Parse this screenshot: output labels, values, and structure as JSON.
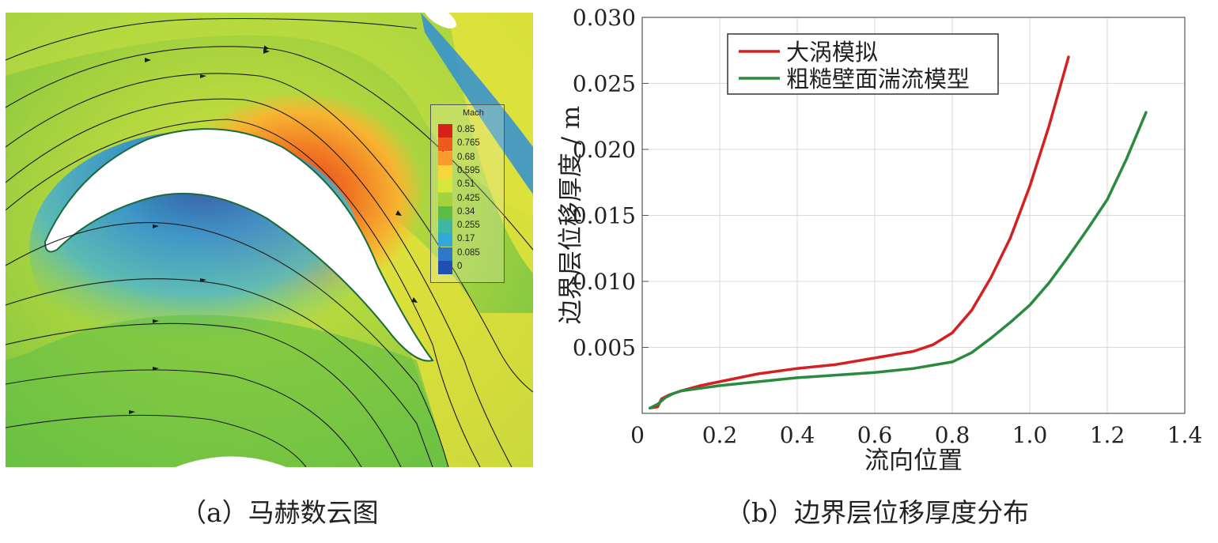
{
  "panel_a": {
    "caption": "（a）马赫数云图",
    "legend_title": "Mach",
    "legend_levels": [
      "0.85",
      "0.765",
      "0.68",
      "0.595",
      "0.51",
      "0.425",
      "0.34",
      "0.255",
      "0.17",
      "0.085",
      "0"
    ],
    "legend_colors": [
      "#d6201a",
      "#ee5a1e",
      "#f89a2c",
      "#f8d63a",
      "#d6e63a",
      "#a3d23d",
      "#5cbc47",
      "#3fb6a1",
      "#33a7d9",
      "#2f78c9",
      "#1f4fb0"
    ]
  },
  "panel_b": {
    "caption": "（b）边界层位移厚度分布",
    "chart_data": {
      "type": "line",
      "xlabel": "流向位置",
      "ylabel": "边界层位移厚度 / m",
      "xlim": [
        0,
        1.4
      ],
      "ylim": [
        0,
        0.03
      ],
      "xticks": [
        "0",
        "0.2",
        "0.4",
        "0.6",
        "0.8",
        "1.0",
        "1.2",
        "1.4"
      ],
      "xtick_values": [
        0,
        0.2,
        0.4,
        0.6,
        0.8,
        1.0,
        1.2,
        1.4
      ],
      "yticks": [
        "0.005",
        "0.010",
        "0.015",
        "0.020",
        "0.025",
        "0.030"
      ],
      "ytick_values": [
        0.005,
        0.01,
        0.015,
        0.02,
        0.025,
        0.03
      ],
      "grid": true,
      "legend_placement": "top-left",
      "series": [
        {
          "name": "大涡模拟",
          "color": "#d42020",
          "x": [
            0.02,
            0.04,
            0.05,
            0.07,
            0.1,
            0.15,
            0.2,
            0.3,
            0.4,
            0.5,
            0.6,
            0.7,
            0.75,
            0.8,
            0.85,
            0.9,
            0.95,
            1.0,
            1.05,
            1.1
          ],
          "y": [
            0.0004,
            0.0005,
            0.0011,
            0.0014,
            0.0017,
            0.0021,
            0.0024,
            0.003,
            0.0034,
            0.0037,
            0.0042,
            0.0047,
            0.0052,
            0.0061,
            0.0078,
            0.0103,
            0.0133,
            0.0172,
            0.0218,
            0.027
          ]
        },
        {
          "name": "粗糙壁面湍流模型",
          "color": "#2a8a3e",
          "x": [
            0.02,
            0.04,
            0.06,
            0.08,
            0.1,
            0.2,
            0.3,
            0.4,
            0.5,
            0.6,
            0.7,
            0.8,
            0.85,
            0.9,
            0.95,
            1.0,
            1.05,
            1.1,
            1.15,
            1.2,
            1.25,
            1.3
          ],
          "y": [
            0.0004,
            0.0007,
            0.0012,
            0.0015,
            0.0017,
            0.0021,
            0.0024,
            0.0027,
            0.0029,
            0.0031,
            0.0034,
            0.0039,
            0.0046,
            0.0057,
            0.0069,
            0.0082,
            0.0099,
            0.0119,
            0.014,
            0.0162,
            0.0193,
            0.0228
          ]
        }
      ]
    }
  }
}
